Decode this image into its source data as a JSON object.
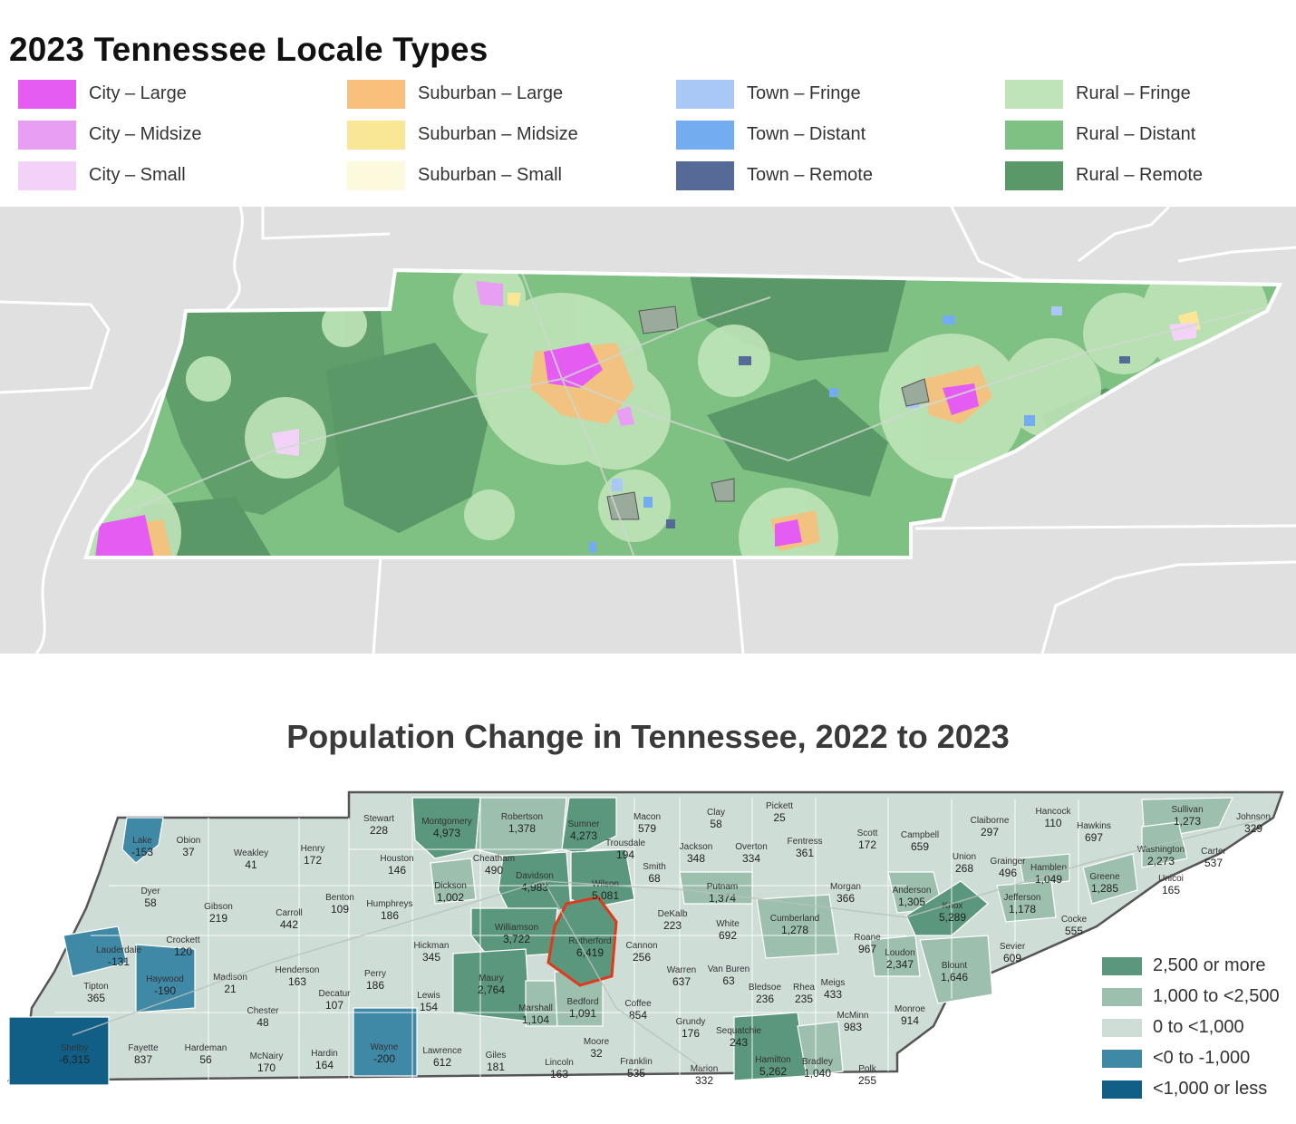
{
  "locale_map": {
    "title": "2023 Tennessee Locale Types",
    "legend": [
      {
        "label": "City – Large",
        "color": "#e45cf2"
      },
      {
        "label": "City – Midsize",
        "color": "#e89ef3"
      },
      {
        "label": "City – Small",
        "color": "#f3d2f7"
      },
      {
        "label": "Suburban – Large",
        "color": "#f8c07a"
      },
      {
        "label": "Suburban – Midsize",
        "color": "#fae796"
      },
      {
        "label": "Suburban – Small",
        "color": "#fdf9dd"
      },
      {
        "label": "Town – Fringe",
        "color": "#a9c8f5"
      },
      {
        "label": "Town – Distant",
        "color": "#73adf0"
      },
      {
        "label": "Town – Remote",
        "color": "#566a97"
      },
      {
        "label": "Rural – Fringe",
        "color": "#bfe4b9"
      },
      {
        "label": "Rural – Distant",
        "color": "#7fc083"
      },
      {
        "label": "Rural – Remote",
        "color": "#5a9867"
      }
    ]
  },
  "population_map": {
    "title": "Population Change in Tennessee, 2022 to 2023",
    "legend": [
      {
        "label": "2,500 or more",
        "color": "#5a977d"
      },
      {
        "label": "1,000 to <2,500",
        "color": "#9dbfae"
      },
      {
        "label": "0 to <1,000",
        "color": "#cfddd7"
      },
      {
        "label": "<0 to -1,000",
        "color": "#3f89a7"
      },
      {
        "label": "<1,000 or less",
        "color": "#115f87"
      }
    ],
    "counties": [
      {
        "name": "Lake",
        "value": "-153",
        "cls": 3
      },
      {
        "name": "Obion",
        "value": "37",
        "cls": 2
      },
      {
        "name": "Weakley",
        "value": "41",
        "cls": 2
      },
      {
        "name": "Henry",
        "value": "172",
        "cls": 2
      },
      {
        "name": "Stewart",
        "value": "228",
        "cls": 2
      },
      {
        "name": "Montgomery",
        "value": "4,973",
        "cls": 0
      },
      {
        "name": "Robertson",
        "value": "1,378",
        "cls": 1
      },
      {
        "name": "Sumner",
        "value": "4,273",
        "cls": 0
      },
      {
        "name": "Macon",
        "value": "579",
        "cls": 2
      },
      {
        "name": "Clay",
        "value": "58",
        "cls": 2
      },
      {
        "name": "Pickett",
        "value": "25",
        "cls": 2
      },
      {
        "name": "Scott",
        "value": "172",
        "cls": 2
      },
      {
        "name": "Campbell",
        "value": "659",
        "cls": 2
      },
      {
        "name": "Claiborne",
        "value": "297",
        "cls": 2
      },
      {
        "name": "Hancock",
        "value": "110",
        "cls": 2
      },
      {
        "name": "Hawkins",
        "value": "697",
        "cls": 2
      },
      {
        "name": "Sullivan",
        "value": "1,273",
        "cls": 1
      },
      {
        "name": "Johnson",
        "value": "329",
        "cls": 2
      },
      {
        "name": "Dyer",
        "value": "58",
        "cls": 2
      },
      {
        "name": "Gibson",
        "value": "219",
        "cls": 2
      },
      {
        "name": "Carroll",
        "value": "442",
        "cls": 2
      },
      {
        "name": "Benton",
        "value": "109",
        "cls": 2
      },
      {
        "name": "Houston",
        "value": "146",
        "cls": 2
      },
      {
        "name": "Humphreys",
        "value": "186",
        "cls": 2
      },
      {
        "name": "Dickson",
        "value": "1,002",
        "cls": 1
      },
      {
        "name": "Cheatham",
        "value": "490",
        "cls": 2
      },
      {
        "name": "Davidson",
        "value": "4,983",
        "cls": 0
      },
      {
        "name": "Trousdale",
        "value": "194",
        "cls": 2
      },
      {
        "name": "Smith",
        "value": "68",
        "cls": 2
      },
      {
        "name": "Wilson",
        "value": "5,081",
        "cls": 0
      },
      {
        "name": "Jackson",
        "value": "348",
        "cls": 2
      },
      {
        "name": "Overton",
        "value": "334",
        "cls": 2
      },
      {
        "name": "Fentress",
        "value": "361",
        "cls": 2
      },
      {
        "name": "Putnam",
        "value": "1,374",
        "cls": 1
      },
      {
        "name": "Morgan",
        "value": "366",
        "cls": 2
      },
      {
        "name": "Anderson",
        "value": "1,305",
        "cls": 1
      },
      {
        "name": "Union",
        "value": "268",
        "cls": 2
      },
      {
        "name": "Grainger",
        "value": "496",
        "cls": 2
      },
      {
        "name": "Hamblen",
        "value": "1,049",
        "cls": 1
      },
      {
        "name": "Greene",
        "value": "1,285",
        "cls": 1
      },
      {
        "name": "Washington",
        "value": "2,273",
        "cls": 1
      },
      {
        "name": "Carter",
        "value": "537",
        "cls": 2
      },
      {
        "name": "Unicoi",
        "value": "165",
        "cls": 2
      },
      {
        "name": "Lauderdale",
        "value": "-131",
        "cls": 3
      },
      {
        "name": "Crockett",
        "value": "120",
        "cls": 2
      },
      {
        "name": "Haywood",
        "value": "-190",
        "cls": 3
      },
      {
        "name": "Madison",
        "value": "21",
        "cls": 2
      },
      {
        "name": "Henderson",
        "value": "163",
        "cls": 2
      },
      {
        "name": "Decatur",
        "value": "107",
        "cls": 2
      },
      {
        "name": "Perry",
        "value": "186",
        "cls": 2
      },
      {
        "name": "Hickman",
        "value": "345",
        "cls": 2
      },
      {
        "name": "Williamson",
        "value": "3,722",
        "cls": 0
      },
      {
        "name": "Rutherford",
        "value": "6,419",
        "cls": 0
      },
      {
        "name": "Cannon",
        "value": "256",
        "cls": 2
      },
      {
        "name": "DeKalb",
        "value": "223",
        "cls": 2
      },
      {
        "name": "White",
        "value": "692",
        "cls": 2
      },
      {
        "name": "Cumberland",
        "value": "1,278",
        "cls": 1
      },
      {
        "name": "Roane",
        "value": "967",
        "cls": 2
      },
      {
        "name": "Loudon",
        "value": "2,347",
        "cls": 1
      },
      {
        "name": "Knox",
        "value": "5,289",
        "cls": 0
      },
      {
        "name": "Jefferson",
        "value": "1,178",
        "cls": 1
      },
      {
        "name": "Cocke",
        "value": "555",
        "cls": 2
      },
      {
        "name": "Sevier",
        "value": "609",
        "cls": 2
      },
      {
        "name": "Blount",
        "value": "1,646",
        "cls": 1
      },
      {
        "name": "Tipton",
        "value": "365",
        "cls": 2
      },
      {
        "name": "Shelby",
        "value": "-6,315",
        "cls": 4
      },
      {
        "name": "Fayette",
        "value": "837",
        "cls": 2
      },
      {
        "name": "Hardeman",
        "value": "56",
        "cls": 2
      },
      {
        "name": "Chester",
        "value": "48",
        "cls": 2
      },
      {
        "name": "McNairy",
        "value": "170",
        "cls": 2
      },
      {
        "name": "Hardin",
        "value": "164",
        "cls": 2
      },
      {
        "name": "Wayne",
        "value": "-200",
        "cls": 3
      },
      {
        "name": "Lewis",
        "value": "154",
        "cls": 2
      },
      {
        "name": "Lawrence",
        "value": "612",
        "cls": 2
      },
      {
        "name": "Maury",
        "value": "2,764",
        "cls": 0
      },
      {
        "name": "Marshall",
        "value": "1,104",
        "cls": 1
      },
      {
        "name": "Giles",
        "value": "181",
        "cls": 2
      },
      {
        "name": "Bedford",
        "value": "1,091",
        "cls": 1
      },
      {
        "name": "Moore",
        "value": "32",
        "cls": 2
      },
      {
        "name": "Lincoln",
        "value": "163",
        "cls": 2
      },
      {
        "name": "Coffee",
        "value": "854",
        "cls": 2
      },
      {
        "name": "Franklin",
        "value": "535",
        "cls": 2
      },
      {
        "name": "Warren",
        "value": "637",
        "cls": 2
      },
      {
        "name": "Van Buren",
        "value": "63",
        "cls": 2
      },
      {
        "name": "Grundy",
        "value": "176",
        "cls": 2
      },
      {
        "name": "Sequatchie",
        "value": "243",
        "cls": 2
      },
      {
        "name": "Marion",
        "value": "332",
        "cls": 2
      },
      {
        "name": "Bledsoe",
        "value": "236",
        "cls": 2
      },
      {
        "name": "Rhea",
        "value": "235",
        "cls": 2
      },
      {
        "name": "Meigs",
        "value": "433",
        "cls": 2
      },
      {
        "name": "McMinn",
        "value": "983",
        "cls": 2
      },
      {
        "name": "Monroe",
        "value": "914",
        "cls": 2
      },
      {
        "name": "Hamilton",
        "value": "5,262",
        "cls": 0
      },
      {
        "name": "Bradley",
        "value": "1,040",
        "cls": 1
      },
      {
        "name": "Polk",
        "value": "255",
        "cls": 2
      }
    ]
  }
}
